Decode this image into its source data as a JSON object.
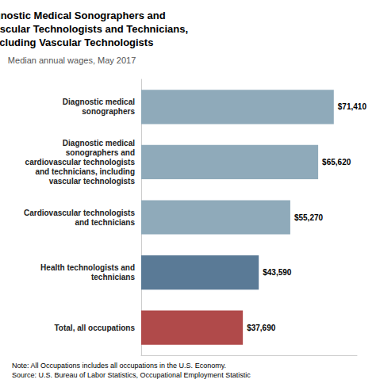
{
  "chart_data": {
    "type": "bar",
    "orientation": "horizontal",
    "title": "Diagnostic Medical Sonographers and\nCardiovascular Technologists and Technicians,\nIncluding Vascular Technologists",
    "subtitle": "Median annual wages, May 2017",
    "note": "Note: All Occupations includes all occupations in the U.S. Economy.\nSource: U.S. Bureau of Labor Statistics, Occupational Employment Statistic",
    "categories": [
      "Total, all occupations",
      "Health technologists and\ntechnicians",
      "Cardiovascular technologists\nand technicians",
      "Diagnostic medical\nsonographers and\ncardiovascular technologists\nand technicians, including\nvascular technologists",
      "Diagnostic medical\nsonographers"
    ],
    "values": [
      37690,
      43590,
      55270,
      65620,
      71410
    ],
    "value_labels": [
      "$37,690",
      "$43,590",
      "$55,270",
      "$65,620",
      "$71,410"
    ],
    "colors": [
      "#b04a4a",
      "#5a7a96",
      "#8faaba",
      "#8faaba",
      "#8faaba"
    ],
    "xlim": [
      0,
      80000
    ],
    "data_labels": true,
    "tick_labels": "y",
    "grid": false
  }
}
